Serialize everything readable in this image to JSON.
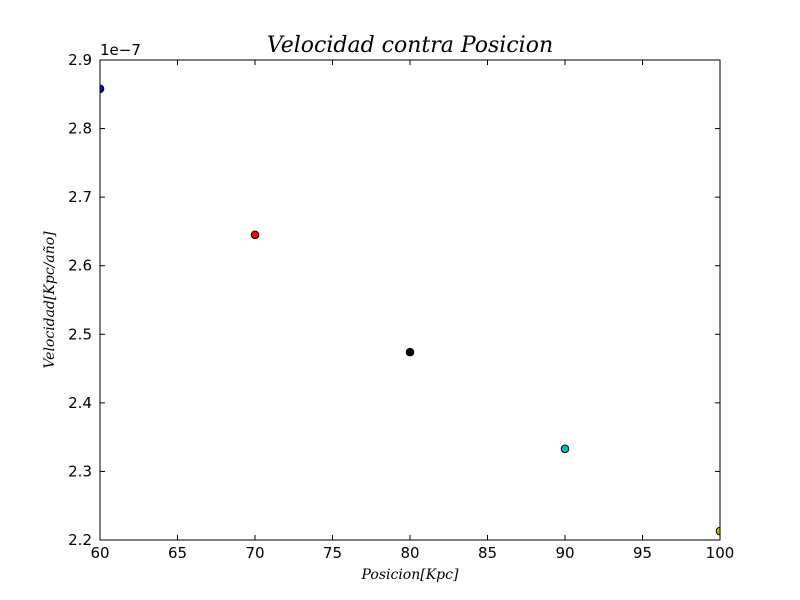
{
  "chart_data": {
    "type": "scatter",
    "title": "Velocidad contra Posicion",
    "xlabel": "Posicion[Kpc]",
    "ylabel": "Velocidad[Kpc/año]",
    "y_offset_label": "1e−7",
    "xlim": [
      60,
      100
    ],
    "ylim": [
      2.2,
      2.9
    ],
    "x_ticks": [
      60,
      65,
      70,
      75,
      80,
      85,
      90,
      95,
      100
    ],
    "x_tick_labels": [
      "60",
      "65",
      "70",
      "75",
      "80",
      "85",
      "90",
      "95",
      "100"
    ],
    "y_ticks": [
      2.2,
      2.3,
      2.4,
      2.5,
      2.6,
      2.7,
      2.8,
      2.9
    ],
    "y_tick_labels": [
      "2.2",
      "2.3",
      "2.4",
      "2.5",
      "2.6",
      "2.7",
      "2.8",
      "2.9"
    ],
    "grid": false,
    "points": [
      {
        "x": 60,
        "y": 2.858,
        "color": "#0000ff"
      },
      {
        "x": 70,
        "y": 2.645,
        "color": "#ff0000"
      },
      {
        "x": 80,
        "y": 2.474,
        "color": "#000000"
      },
      {
        "x": 90,
        "y": 2.333,
        "color": "#00bfbf"
      },
      {
        "x": 100,
        "y": 2.213,
        "color": "#bfbf00"
      }
    ]
  }
}
